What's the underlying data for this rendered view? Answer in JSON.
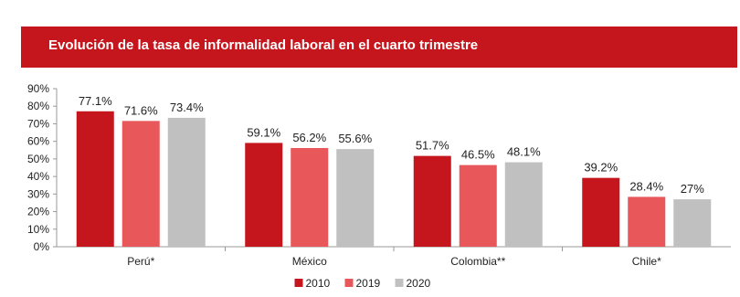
{
  "title": "Evolución de la tasa de informalidad laboral en el cuarto trimestre",
  "colors": {
    "title_bg": "#c4161c",
    "axis": "#999999"
  },
  "chart_data": {
    "type": "bar",
    "title": "Evolución de la tasa de informalidad laboral en el cuarto trimestre",
    "xlabel": "",
    "ylabel": "",
    "ylim": [
      0,
      90
    ],
    "y_ticks": [
      "0%",
      "10%",
      "20%",
      "30%",
      "40%",
      "50%",
      "60%",
      "70%",
      "80%",
      "90%"
    ],
    "categories": [
      "Perú*",
      "México",
      "Colombia**",
      "Chile*"
    ],
    "series": [
      {
        "name": "2010",
        "color": "#c4161c",
        "values": [
          77.1,
          59.1,
          51.7,
          39.2
        ],
        "labels": [
          "77.1%",
          "59.1%",
          "51.7%",
          "39.2%"
        ]
      },
      {
        "name": "2019",
        "color": "#e8575a",
        "values": [
          71.6,
          56.2,
          46.5,
          28.4
        ],
        "labels": [
          "71.6%",
          "56.2%",
          "46.5%",
          "28.4%"
        ]
      },
      {
        "name": "2020",
        "color": "#c0c0c0",
        "values": [
          73.4,
          55.6,
          48.1,
          27
        ],
        "labels": [
          "73.4%",
          "55.6%",
          "48.1%",
          "27%"
        ]
      }
    ],
    "legend_position": "bottom",
    "grid": false
  }
}
